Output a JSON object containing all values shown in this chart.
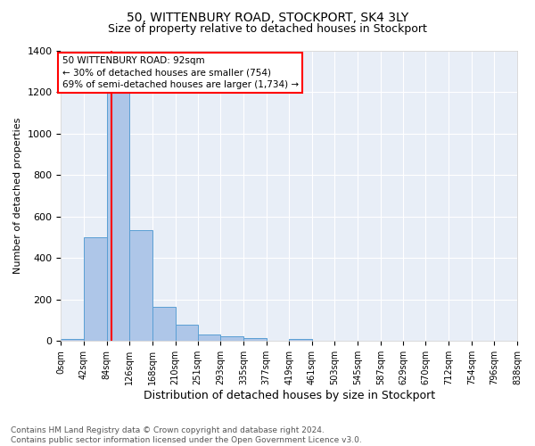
{
  "title": "50, WITTENBURY ROAD, STOCKPORT, SK4 3LY",
  "subtitle": "Size of property relative to detached houses in Stockport",
  "xlabel": "Distribution of detached houses by size in Stockport",
  "ylabel": "Number of detached properties",
  "footnote1": "Contains HM Land Registry data © Crown copyright and database right 2024.",
  "footnote2": "Contains public sector information licensed under the Open Government Licence v3.0.",
  "annotation_title": "50 WITTENBURY ROAD: 92sqm",
  "annotation_line1": "← 30% of detached houses are smaller (754)",
  "annotation_line2": "69% of semi-detached houses are larger (1,734) →",
  "bar_edges": [
    0,
    42,
    84,
    126,
    168,
    210,
    251,
    293,
    335,
    377,
    419,
    461,
    503,
    545,
    587,
    629,
    670,
    712,
    754,
    796,
    838
  ],
  "bar_heights": [
    10,
    500,
    1240,
    535,
    165,
    80,
    30,
    22,
    15,
    0,
    12,
    0,
    0,
    0,
    0,
    0,
    0,
    0,
    0,
    0
  ],
  "bar_color": "#aec6e8",
  "bar_edge_color": "#5a9fd4",
  "background_color": "#e8eef7",
  "red_line_x": 92,
  "xlim": [
    0,
    838
  ],
  "ylim": [
    0,
    1400
  ],
  "yticks": [
    0,
    200,
    400,
    600,
    800,
    1000,
    1200,
    1400
  ],
  "xtick_labels": [
    "0sqm",
    "42sqm",
    "84sqm",
    "126sqm",
    "168sqm",
    "210sqm",
    "251sqm",
    "293sqm",
    "335sqm",
    "377sqm",
    "419sqm",
    "461sqm",
    "503sqm",
    "545sqm",
    "587sqm",
    "629sqm",
    "670sqm",
    "712sqm",
    "754sqm",
    "796sqm",
    "838sqm"
  ],
  "xtick_positions": [
    0,
    42,
    84,
    126,
    168,
    210,
    251,
    293,
    335,
    377,
    419,
    461,
    503,
    545,
    587,
    629,
    670,
    712,
    754,
    796,
    838
  ],
  "title_fontsize": 10,
  "subtitle_fontsize": 9,
  "ylabel_fontsize": 8,
  "xlabel_fontsize": 9,
  "footnote_fontsize": 6.5,
  "annotation_fontsize": 7.5
}
